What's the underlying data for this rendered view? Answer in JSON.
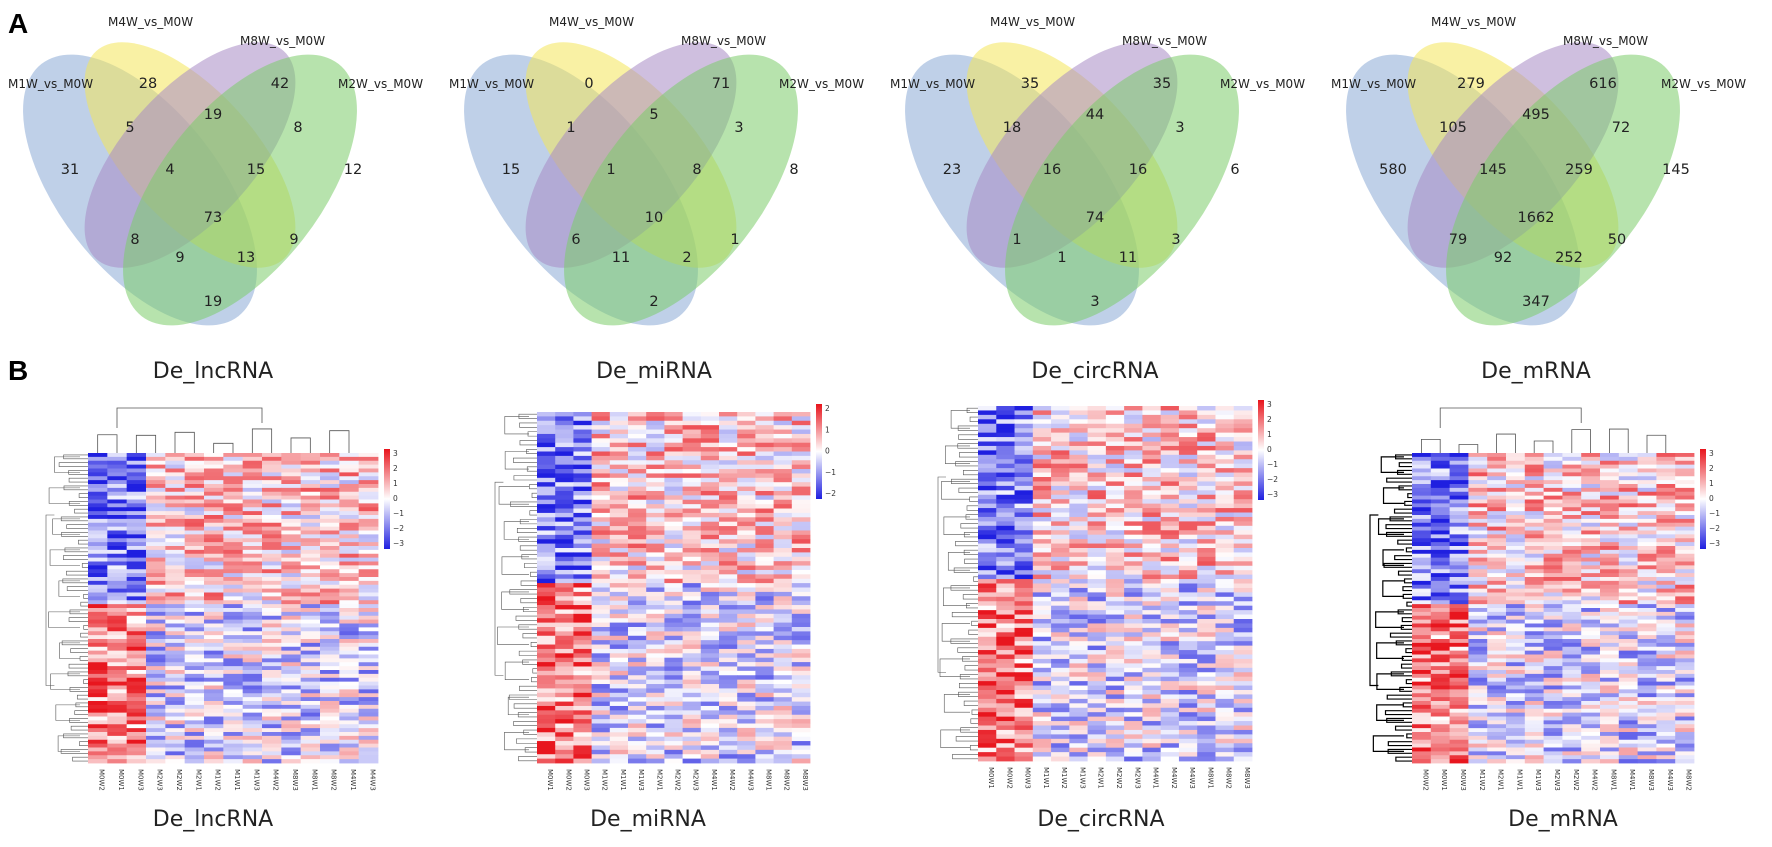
{
  "panels": {
    "a": "A",
    "b": "B"
  },
  "venn": [
    {
      "caption": "De_lncRNA",
      "set_labels": [
        "M1W_vs_M0W",
        "M4W_vs_M0W",
        "M8W_vs_M0W",
        "M2W_vs_M0W"
      ],
      "regions": [
        "31",
        "28",
        "42",
        "12",
        "5",
        "19",
        "8",
        "4",
        "15",
        "73",
        "8",
        "9",
        "13",
        "9",
        "19"
      ]
    },
    {
      "caption": "De_miRNA",
      "set_labels": [
        "M1W_vs_M0W",
        "M4W_vs_M0W",
        "M8W_vs_M0W",
        "M2W_vs_M0W"
      ],
      "regions": [
        "15",
        "0",
        "71",
        "8",
        "1",
        "5",
        "3",
        "1",
        "8",
        "10",
        "6",
        "11",
        "2",
        "1",
        "2"
      ]
    },
    {
      "caption": "De_circRNA",
      "set_labels": [
        "M1W_vs_M0W",
        "M4W_vs_M0W",
        "M8W_vs_M0W",
        "M2W_vs_M0W"
      ],
      "regions": [
        "23",
        "35",
        "35",
        "6",
        "18",
        "44",
        "3",
        "16",
        "16",
        "74",
        "1",
        "1",
        "11",
        "3",
        "3"
      ]
    },
    {
      "caption": "De_mRNA",
      "set_labels": [
        "M1W_vs_M0W",
        "M4W_vs_M0W",
        "M8W_vs_M0W",
        "M2W_vs_M0W"
      ],
      "regions": [
        "580",
        "279",
        "616",
        "145",
        "105",
        "495",
        "72",
        "145",
        "259",
        "1662",
        "79",
        "92",
        "252",
        "50",
        "347"
      ]
    }
  ],
  "heatmaps": [
    {
      "caption": "De_lncRNA",
      "columns": [
        "M0W2",
        "M0W1",
        "M0W3",
        "M2W3",
        "M2W2",
        "M2W1",
        "M1W2",
        "M1W1",
        "M1W3",
        "M4W2",
        "M8W3",
        "M8W1",
        "M8W2",
        "M4W1",
        "M4W3"
      ],
      "legend": [
        "3",
        "2",
        "1",
        "0",
        "−1",
        "−2",
        "−3"
      ]
    },
    {
      "caption": "De_miRNA",
      "columns": [
        "M0W1",
        "M0W2",
        "M0W3",
        "M1W2",
        "M1W1",
        "M1W3",
        "M2W1",
        "M2W2",
        "M2W3",
        "M4W1",
        "M4W2",
        "M4W3",
        "M8W1",
        "M8W2",
        "M8W3"
      ],
      "legend": [
        "2",
        "1",
        "0",
        "−1",
        "−2"
      ]
    },
    {
      "caption": "De_circRNA",
      "columns": [
        "M0W1",
        "M0W2",
        "M0W3",
        "M1W1",
        "M1W2",
        "M1W3",
        "M2W1",
        "M2W2",
        "M2W3",
        "M4W1",
        "M4W2",
        "M4W3",
        "M8W1",
        "M8W2",
        "M8W3"
      ],
      "legend": [
        "3",
        "2",
        "1",
        "0",
        "−1",
        "−2",
        "−3"
      ]
    },
    {
      "caption": "De_mRNA",
      "columns": [
        "M0W2",
        "M0W1",
        "M0W3",
        "M1W2",
        "M2W1",
        "M1W1",
        "M1W3",
        "M2W3",
        "M2W2",
        "M4W2",
        "M8W1",
        "M4W1",
        "M8W3",
        "M4W3",
        "M8W2"
      ],
      "legend": [
        "3",
        "2",
        "1",
        "0",
        "−1",
        "−2",
        "−3"
      ]
    }
  ],
  "colors": {
    "red": "#e8141c",
    "white": "#ffffff",
    "blue": "#1f1fe0",
    "set1": "#8aa9d6",
    "set2": "#f4e55a",
    "set3": "#a88bc4",
    "set4": "#7ccc6a"
  }
}
